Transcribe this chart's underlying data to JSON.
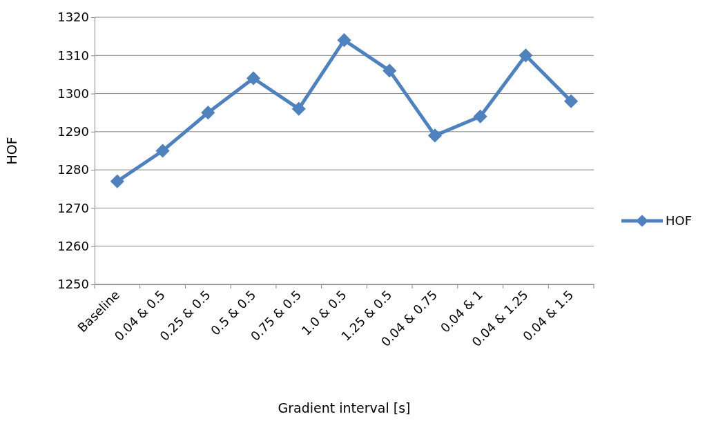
{
  "chart_data": {
    "type": "line",
    "xlabel": "Gradient interval [s]",
    "ylabel": "HOF",
    "categories": [
      "Baseline",
      "0.04 & 0.5",
      "0.25 & 0.5",
      "0.5 & 0.5",
      "0.75 & 0.5",
      "1.0 & 0.5",
      "1.25 & 0.5",
      "0.04 & 0.75",
      "0.04 & 1",
      "0.04 & 1.25",
      "0.04 & 1.5"
    ],
    "series": [
      {
        "name": "HOF",
        "color": "#4f81bd",
        "values": [
          1277,
          1285,
          1295,
          1304,
          1296,
          1314,
          1306,
          1289,
          1294,
          1310,
          1298
        ]
      }
    ],
    "ylim": [
      1250,
      1320
    ],
    "yticks": [
      1250,
      1260,
      1270,
      1280,
      1290,
      1300,
      1310,
      1320
    ],
    "grid": "y",
    "legend": "right",
    "marker": "diamond",
    "line_style": "solid"
  }
}
